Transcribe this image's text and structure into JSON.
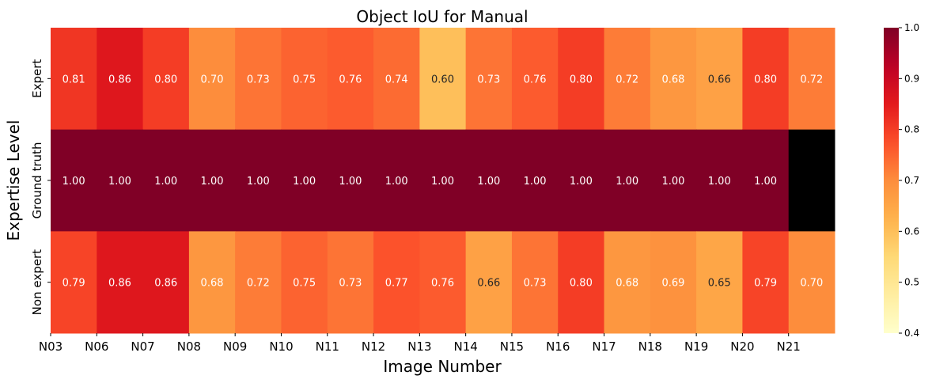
{
  "chart_data": {
    "type": "heatmap",
    "title": "Object IoU for Manual",
    "xlabel": "Image Number",
    "ylabel": "Expertise Level",
    "x_tick_labels": [
      "N03",
      "N06",
      "N07",
      "N08",
      "N09",
      "N10",
      "N11",
      "N12",
      "N13",
      "N14",
      "N15",
      "N16",
      "N17",
      "N18",
      "N19",
      "N20",
      "N21"
    ],
    "rows": [
      "Expert",
      "Ground truth",
      "Non expert"
    ],
    "values": [
      [
        0.81,
        0.86,
        0.8,
        0.7,
        0.73,
        0.75,
        0.76,
        0.74,
        0.6,
        0.73,
        0.76,
        0.8,
        0.72,
        0.68,
        0.66,
        0.8,
        0.72
      ],
      [
        1.0,
        1.0,
        1.0,
        1.0,
        1.0,
        1.0,
        1.0,
        1.0,
        1.0,
        1.0,
        1.0,
        1.0,
        1.0,
        1.0,
        1.0,
        1.0,
        null
      ],
      [
        0.79,
        0.86,
        0.86,
        0.68,
        0.72,
        0.75,
        0.73,
        0.77,
        0.76,
        0.66,
        0.73,
        0.8,
        0.68,
        0.69,
        0.65,
        0.79,
        0.7
      ]
    ],
    "missing_color": "#000000",
    "colormap": "YlOrRd",
    "vmin": 0.4,
    "vmax": 1.0,
    "colorbar_ticks": [
      "0.4",
      "0.5",
      "0.6",
      "0.7",
      "0.8",
      "0.9",
      "1.0"
    ],
    "annotation_format": "2 decimals",
    "grid": false,
    "legend": "colorbar-right"
  }
}
